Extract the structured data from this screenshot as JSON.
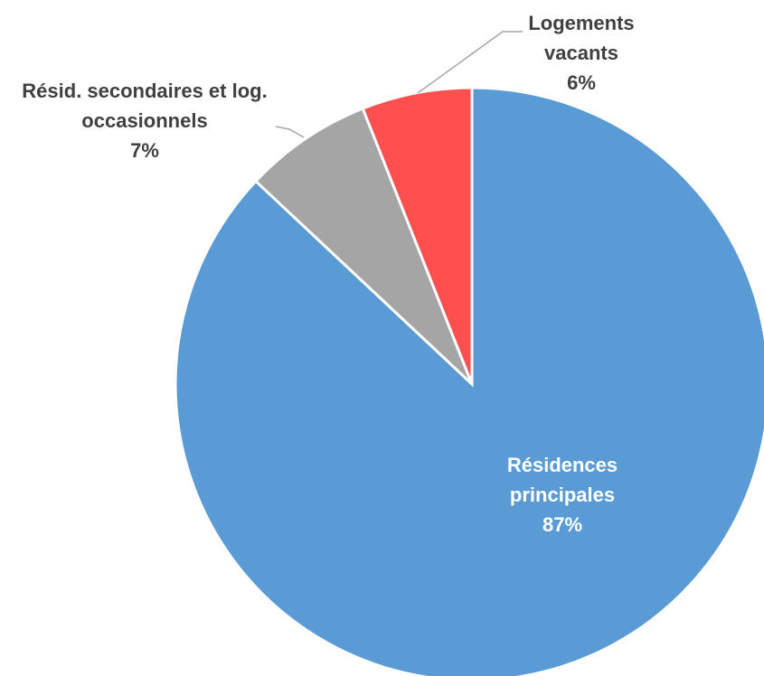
{
  "chart_data": {
    "type": "pie",
    "categories": [
      "Résidences principales",
      "Résid. secondaires et log. occasionnels",
      "Logements vacants"
    ],
    "values": [
      87,
      7,
      6
    ],
    "value_labels": [
      "87%",
      "7%",
      "6%"
    ],
    "colors": [
      "#5b9bd5",
      "#a5a5a5",
      "#ff4f4f"
    ]
  }
}
